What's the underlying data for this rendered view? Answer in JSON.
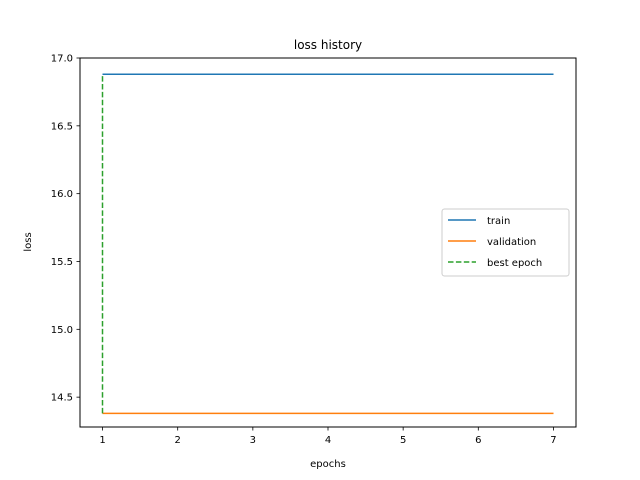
{
  "chart_data": {
    "type": "line",
    "title": "loss history",
    "xlabel": "epochs",
    "ylabel": "loss",
    "xlim": [
      0.7,
      7.3
    ],
    "ylim": [
      14.28,
      17.0
    ],
    "xticks": [
      1,
      2,
      3,
      4,
      5,
      6,
      7
    ],
    "xtick_labels": [
      "1",
      "2",
      "3",
      "4",
      "5",
      "6",
      "7"
    ],
    "yticks": [
      14.5,
      15.0,
      15.5,
      16.0,
      16.5,
      17.0
    ],
    "ytick_labels": [
      "14.5",
      "15.0",
      "15.5",
      "16.0",
      "16.5",
      "17.0"
    ],
    "grid": false,
    "legend_position": "center-right",
    "series": [
      {
        "name": "train",
        "color": "#1f77b4",
        "style": "solid",
        "x": [
          1,
          2,
          3,
          4,
          5,
          6,
          7
        ],
        "y": [
          16.88,
          16.88,
          16.88,
          16.88,
          16.88,
          16.88,
          16.88
        ]
      },
      {
        "name": "validation",
        "color": "#ff7f0e",
        "style": "solid",
        "x": [
          1,
          2,
          3,
          4,
          5,
          6,
          7
        ],
        "y": [
          14.38,
          14.38,
          14.38,
          14.38,
          14.38,
          14.38,
          14.38
        ]
      },
      {
        "name": "best epoch",
        "color": "#2ca02c",
        "style": "dashed",
        "x": [
          1,
          1
        ],
        "y": [
          14.38,
          16.88
        ]
      }
    ]
  }
}
